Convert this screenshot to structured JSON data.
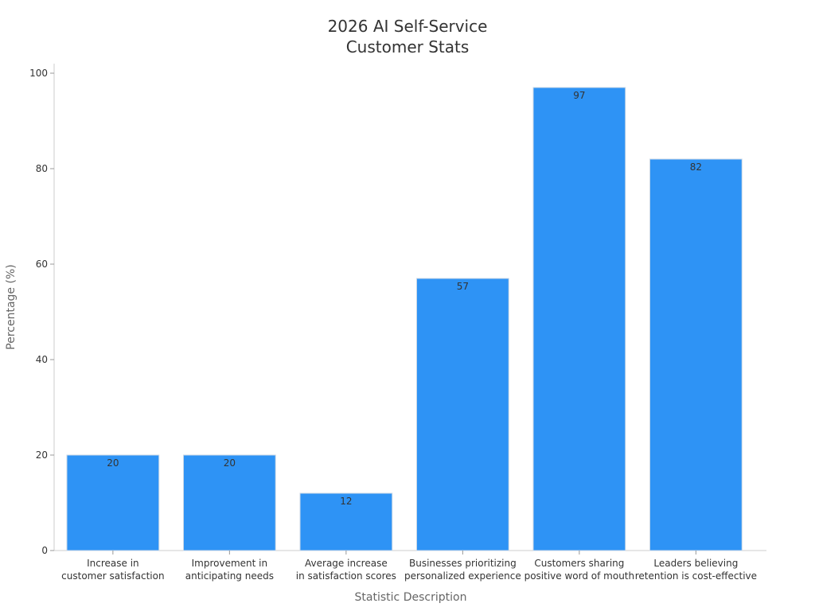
{
  "chart_data": {
    "type": "bar",
    "title": [
      "2026 AI Self-Service",
      "Customer Stats"
    ],
    "xlabel": "Statistic Description",
    "ylabel": "Percentage (%)",
    "ylim": [
      0,
      102
    ],
    "yticks": [
      0,
      20,
      40,
      60,
      80,
      100
    ],
    "grid": false,
    "bar_color": "#2e93f5",
    "bar_edge_color": "#c9d7e6",
    "categories": [
      [
        "Increase in",
        "customer satisfaction"
      ],
      [
        "Improvement in",
        "anticipating needs"
      ],
      [
        "Average increase",
        "in satisfaction scores"
      ],
      [
        "Businesses prioritizing",
        "personalized experience"
      ],
      [
        "Customers sharing",
        "positive word of mouth"
      ],
      [
        "Leaders believing",
        "retention is cost-effective"
      ]
    ],
    "values": [
      20,
      20,
      12,
      57,
      97,
      82
    ],
    "value_labels": [
      "20",
      "20",
      "12",
      "57",
      "97",
      "82"
    ]
  }
}
